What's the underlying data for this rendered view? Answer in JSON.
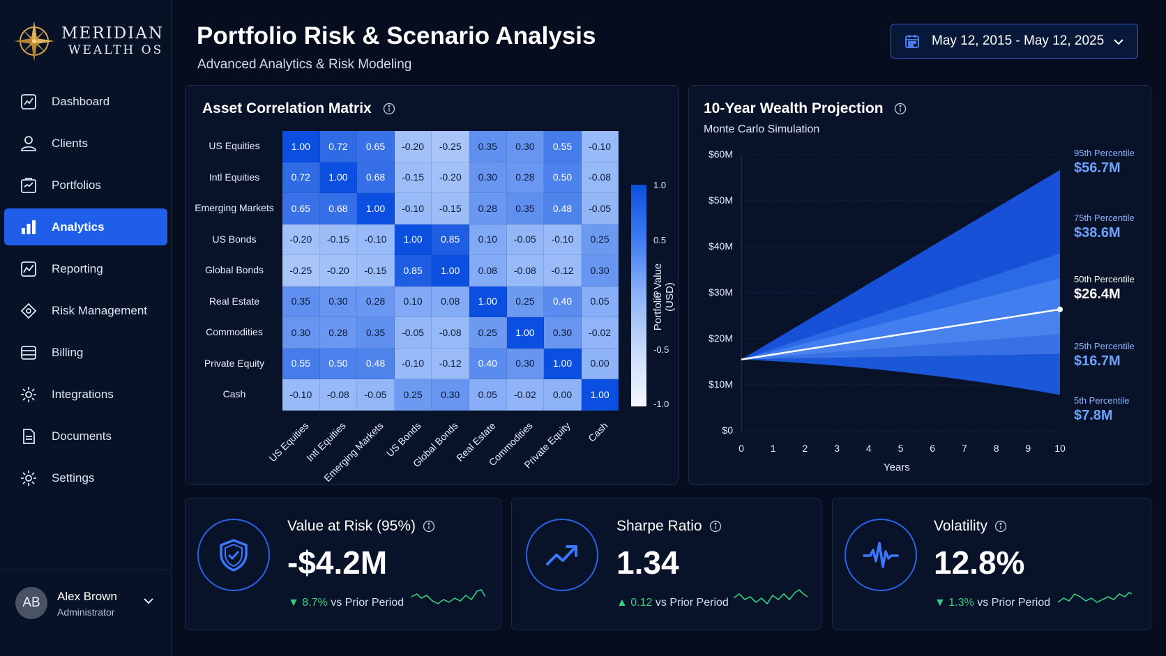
{
  "brand": {
    "line1": "MERIDIAN",
    "line2": "WEALTH OS",
    "icon": "compass-star-logo"
  },
  "nav": [
    {
      "label": "Dashboard",
      "icon": "line-chart-icon",
      "active": false
    },
    {
      "label": "Clients",
      "icon": "user-icon",
      "active": false
    },
    {
      "label": "Portfolios",
      "icon": "portfolio-icon",
      "active": false
    },
    {
      "label": "Analytics",
      "icon": "bar-chart-icon",
      "active": true
    },
    {
      "label": "Reporting",
      "icon": "report-chart-icon",
      "active": false
    },
    {
      "label": "Risk Management",
      "icon": "risk-icon",
      "active": false
    },
    {
      "label": "Billing",
      "icon": "billing-icon",
      "active": false
    },
    {
      "label": "Integrations",
      "icon": "gear-icon",
      "active": false
    },
    {
      "label": "Documents",
      "icon": "document-icon",
      "active": false
    },
    {
      "label": "Settings",
      "icon": "gear-icon",
      "active": false
    }
  ],
  "user": {
    "initials": "AB",
    "name": "Alex Brown",
    "role": "Administrator"
  },
  "header": {
    "title": "Portfolio Risk & Scenario Analysis",
    "subtitle": "Advanced Analytics & Risk Modeling",
    "date_range": "May 12, 2015 - May 12, 2025"
  },
  "correlation": {
    "title": "Asset Correlation Matrix",
    "labels": [
      "US Equities",
      "Intl Equities",
      "Emerging Markets",
      "US Bonds",
      "Global Bonds",
      "Real Estate",
      "Commodities",
      "Private Equity",
      "Cash"
    ],
    "matrix": [
      [
        "1.00",
        "0.72",
        "0.65",
        "-0.20",
        "-0.25",
        "0.35",
        "0.30",
        "0.55",
        "-0.10"
      ],
      [
        "0.72",
        "1.00",
        "0.68",
        "-0.15",
        "-0.20",
        "0.30",
        "0.28",
        "0.50",
        "-0.08"
      ],
      [
        "0.65",
        "0.68",
        "1.00",
        "-0.10",
        "-0.15",
        "0.28",
        "0.35",
        "0.48",
        "-0.05"
      ],
      [
        "-0.20",
        "-0.15",
        "-0.10",
        "1.00",
        "0.85",
        "0.10",
        "-0.05",
        "-0.10",
        "0.25"
      ],
      [
        "-0.25",
        "-0.20",
        "-0.15",
        "0.85",
        "1.00",
        "0.08",
        "-0.08",
        "-0.12",
        "0.30"
      ],
      [
        "0.35",
        "0.30",
        "0.28",
        "0.10",
        "0.08",
        "1.00",
        "0.25",
        "0.40",
        "0.05"
      ],
      [
        "0.30",
        "0.28",
        "0.35",
        "-0.05",
        "-0.08",
        "0.25",
        "1.00",
        "0.30",
        "-0.02"
      ],
      [
        "0.55",
        "0.50",
        "0.48",
        "-0.10",
        "-0.12",
        "0.40",
        "0.30",
        "1.00",
        "0.00"
      ],
      [
        "-0.10",
        "-0.08",
        "-0.05",
        "0.25",
        "0.30",
        "0.05",
        "-0.02",
        "0.00",
        "1.00"
      ]
    ],
    "scale_ticks": [
      "1.0",
      "0.5",
      "0",
      "-0.5",
      "-1.0"
    ]
  },
  "chart_data": {
    "type": "area",
    "title": "10-Year Wealth Projection",
    "subtitle": "Monte Carlo Simulation",
    "xlabel": "Years",
    "ylabel": "Portfolio Value (USD)",
    "x": [
      0,
      1,
      2,
      3,
      4,
      5,
      6,
      7,
      8,
      9,
      10
    ],
    "ylim": [
      0,
      60
    ],
    "y_ticks": [
      "$0",
      "$10M",
      "$20M",
      "$30M",
      "$40M",
      "$50M",
      "$60M"
    ],
    "start_value": 15.5,
    "series": [
      {
        "name": "95th Percentile",
        "end_value": 56.7,
        "label": "$56.7M"
      },
      {
        "name": "75th Percentile",
        "end_value": 38.6,
        "label": "$38.6M"
      },
      {
        "name": "50th Percentile",
        "end_value": 26.4,
        "label": "$26.4M"
      },
      {
        "name": "25th Percentile",
        "end_value": 16.7,
        "label": "$16.7M"
      },
      {
        "name": "5th Percentile",
        "end_value": 7.8,
        "label": "$7.8M"
      }
    ],
    "grid": true
  },
  "kpis": [
    {
      "title": "Value at Risk (95%)",
      "value": "-$4.2M",
      "arrow": "▼",
      "delta": "8.7%",
      "suffix": " vs Prior Period",
      "icon": "shield-check-icon"
    },
    {
      "title": "Sharpe Ratio",
      "value": "1.34",
      "arrow": "▲",
      "delta": "0.12",
      "suffix": " vs Prior Period",
      "icon": "trend-up-icon"
    },
    {
      "title": "Volatility",
      "value": "12.8%",
      "arrow": "▼",
      "delta": "1.3%",
      "suffix": " vs Prior Period",
      "icon": "pulse-icon"
    }
  ],
  "colors": {
    "accent": "#1f5ee8",
    "positive": "#35d07f",
    "background": "#050d1f"
  }
}
